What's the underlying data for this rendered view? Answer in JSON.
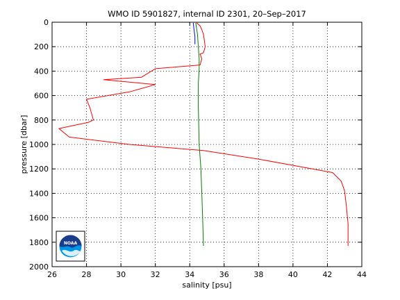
{
  "chart_data": {
    "type": "line",
    "title": "WMO ID 5901827, internal ID 2301, 20–Sep–2017",
    "xlabel": "salinity [psu]",
    "ylabel": "pressure [dbar]",
    "xlim": [
      26,
      44
    ],
    "ylim": [
      0,
      2000
    ],
    "y_reversed": true,
    "grid": true,
    "x_ticks": [
      "26",
      "28",
      "30",
      "32",
      "34",
      "36",
      "38",
      "40",
      "42",
      "44"
    ],
    "y_ticks": [
      "0",
      "200",
      "400",
      "600",
      "800",
      "1000",
      "1200",
      "1400",
      "1600",
      "1800",
      "2000"
    ],
    "series": [
      {
        "color": "#0000ff",
        "x": [
          34.2,
          34.25,
          34.3,
          34.3
        ],
        "y": [
          5,
          60,
          120,
          180
        ]
      },
      {
        "color": "#008000",
        "x": [
          34.35,
          34.45,
          34.5,
          34.55,
          34.55,
          34.5,
          34.5,
          34.55,
          34.65,
          34.7,
          34.75,
          34.8
        ],
        "y": [
          5,
          100,
          200,
          300,
          380,
          500,
          700,
          1000,
          1200,
          1400,
          1600,
          1830
        ]
      },
      {
        "color": "#ff0000",
        "x": [
          34.4,
          34.6,
          34.7,
          34.8,
          34.85,
          34.9,
          34.8,
          34.6,
          34.7,
          34.6,
          32.0,
          31.2,
          29.0,
          32.0,
          30.5,
          28.0,
          28.2,
          28.4,
          28.1,
          26.4,
          27.0,
          30.5,
          34.8,
          38.0,
          42.3,
          42.8,
          43.0,
          43.1,
          43.2,
          43.2
        ],
        "y": [
          5,
          30,
          60,
          100,
          150,
          200,
          250,
          260,
          300,
          350,
          380,
          450,
          470,
          510,
          570,
          630,
          700,
          800,
          820,
          870,
          940,
          1000,
          1050,
          1120,
          1230,
          1300,
          1380,
          1500,
          1650,
          1830
        ]
      }
    ]
  },
  "logo": {
    "text": "NOAA",
    "colors": {
      "dark": "#1b3c8c",
      "light": "#0096e6",
      "bg": "#ffffff"
    }
  }
}
